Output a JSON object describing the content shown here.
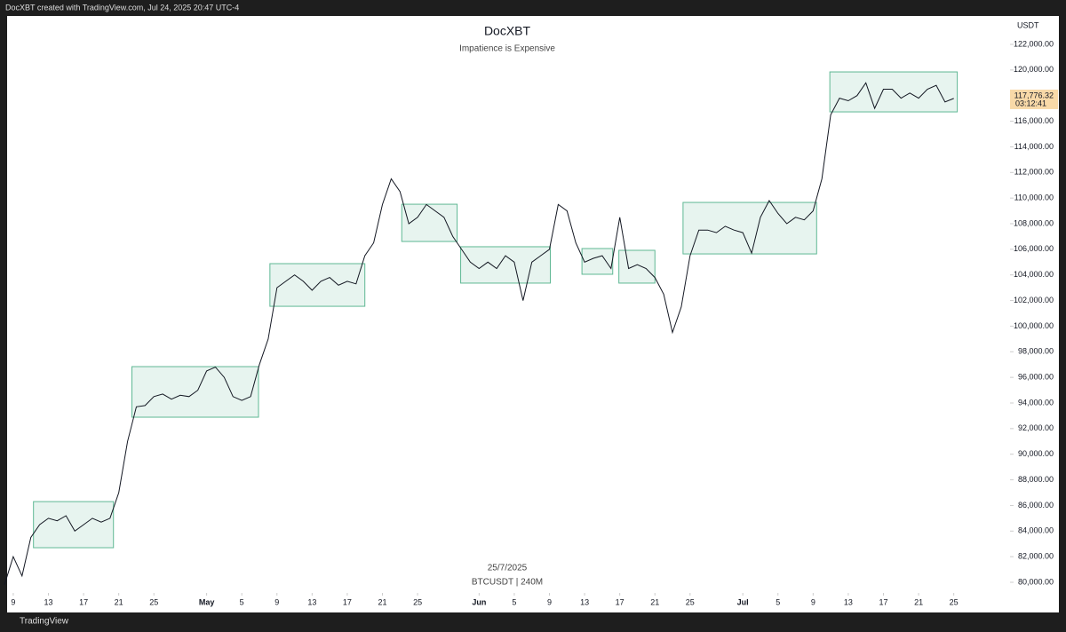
{
  "header": "DocXBT created with TradingView.com, Jul 24, 2025 20:47 UTC-4",
  "footer": "TradingView",
  "chart_data": {
    "type": "line",
    "title": "DocXBT",
    "subtitle": "Impatience is Expensive",
    "y_axis_label": "USDT",
    "watermark_date": "25/7/2025",
    "watermark_symbol": "BTCUSDT | 240M",
    "last_price_label": "117,776.32",
    "countdown": "03:12:41",
    "series": [
      {
        "name": "BTCUSDT",
        "color": "#131722",
        "x": [
          7,
          8,
          9,
          10,
          11,
          12,
          13,
          14,
          15,
          16,
          17,
          18,
          19,
          20,
          21,
          22,
          23,
          24,
          25,
          26,
          27,
          28,
          29,
          30,
          31,
          32,
          33,
          34,
          35,
          36,
          37,
          38,
          39,
          40,
          41,
          42,
          43,
          44,
          45,
          46,
          47,
          48,
          49,
          50,
          51,
          52,
          53,
          54,
          55,
          56,
          57,
          58,
          59,
          60,
          61,
          62,
          63,
          64,
          65,
          66,
          67,
          68,
          69,
          70,
          71,
          72,
          73,
          74,
          75,
          76,
          77,
          78,
          79,
          80,
          81,
          82,
          83,
          84,
          85,
          86,
          87,
          88,
          89,
          90,
          91,
          92,
          93,
          94,
          95,
          96,
          97,
          98,
          99,
          100,
          101,
          102,
          103,
          104,
          105,
          106,
          107,
          108,
          109,
          110,
          111,
          112,
          113,
          114,
          115
        ],
        "values": [
          79800,
          82000,
          80500,
          83500,
          84500,
          85000,
          84800,
          85200,
          84000,
          84500,
          85000,
          84700,
          85000,
          87000,
          91000,
          93700,
          93800,
          94500,
          94700,
          94300,
          94600,
          94500,
          95000,
          96500,
          96800,
          96000,
          94500,
          94200,
          94500,
          97000,
          99000,
          103000,
          103500,
          104000,
          103500,
          102800,
          103500,
          103800,
          103200,
          103500,
          103300,
          105500,
          106500,
          109500,
          111500,
          110500,
          108000,
          108500,
          109500,
          109000,
          108500,
          107000,
          106000,
          105000,
          104500,
          105000,
          104500,
          105500,
          105000,
          102000,
          105000,
          105500,
          106000,
          109500,
          109000,
          106500,
          105000,
          105300,
          105500,
          104500,
          108500,
          104500,
          104800,
          104500,
          103800,
          102500,
          99500,
          101500,
          105500,
          107500,
          107500,
          107300,
          107800,
          107500,
          107300,
          105700,
          108500,
          109800,
          108800,
          108000,
          108500,
          108300,
          109000,
          111500,
          116500,
          117800,
          117600,
          118000,
          119000,
          117000,
          118500,
          118500,
          117800,
          118200,
          117800,
          118500,
          118800,
          117500,
          117776.32
        ]
      }
    ],
    "box_color": "#5fb894",
    "boxes": [
      {
        "x": [
          10.3,
          19.4
        ],
        "y": [
          82700,
          86300
        ]
      },
      {
        "x": [
          21.5,
          35.9
        ],
        "y": [
          92890,
          96840
        ]
      },
      {
        "x": [
          37.2,
          48.0
        ],
        "y": [
          101550,
          104880
        ]
      },
      {
        "x": [
          52.2,
          58.5
        ],
        "y": [
          106610,
          109520
        ]
      },
      {
        "x": [
          58.9,
          69.1
        ],
        "y": [
          103360,
          106200
        ]
      },
      {
        "x": [
          72.7,
          76.2
        ],
        "y": [
          104050,
          106060
        ]
      },
      {
        "x": [
          76.9,
          81.0
        ],
        "y": [
          103360,
          105920
        ]
      },
      {
        "x": [
          84.2,
          99.4
        ],
        "y": [
          105640,
          109660
        ]
      },
      {
        "x": [
          100.9,
          115.4
        ],
        "y": [
          116730,
          119850
        ]
      }
    ],
    "xlim": [
      7.3,
      121.2
    ],
    "ylim": [
      79168,
      124218
    ],
    "xticks": [
      {
        "value": 8,
        "label": "9"
      },
      {
        "value": 12,
        "label": "13"
      },
      {
        "value": 16,
        "label": "17"
      },
      {
        "value": 20,
        "label": "21"
      },
      {
        "value": 24,
        "label": "25"
      },
      {
        "value": 30,
        "label": "May"
      },
      {
        "value": 34,
        "label": "5"
      },
      {
        "value": 38,
        "label": "9"
      },
      {
        "value": 42,
        "label": "13"
      },
      {
        "value": 46,
        "label": "17"
      },
      {
        "value": 50,
        "label": "21"
      },
      {
        "value": 54,
        "label": "25"
      },
      {
        "value": 61,
        "label": "Jun"
      },
      {
        "value": 65,
        "label": "5"
      },
      {
        "value": 69,
        "label": "9"
      },
      {
        "value": 73,
        "label": "13"
      },
      {
        "value": 77,
        "label": "17"
      },
      {
        "value": 81,
        "label": "21"
      },
      {
        "value": 85,
        "label": "25"
      },
      {
        "value": 91,
        "label": "Jul"
      },
      {
        "value": 95,
        "label": "5"
      },
      {
        "value": 99,
        "label": "9"
      },
      {
        "value": 103,
        "label": "13"
      },
      {
        "value": 107,
        "label": "17"
      },
      {
        "value": 111,
        "label": "21"
      },
      {
        "value": 115,
        "label": "25"
      }
    ],
    "yticks": [
      {
        "value": 80000,
        "label": "80,000.00"
      },
      {
        "value": 82000,
        "label": "82,000.00"
      },
      {
        "value": 84000,
        "label": "84,000.00"
      },
      {
        "value": 86000,
        "label": "86,000.00"
      },
      {
        "value": 88000,
        "label": "88,000.00"
      },
      {
        "value": 90000,
        "label": "90,000.00"
      },
      {
        "value": 92000,
        "label": "92,000.00"
      },
      {
        "value": 94000,
        "label": "94,000.00"
      },
      {
        "value": 96000,
        "label": "96,000.00"
      },
      {
        "value": 98000,
        "label": "98,000.00"
      },
      {
        "value": 100000,
        "label": "100,000.00"
      },
      {
        "value": 102000,
        "label": "102,000.00"
      },
      {
        "value": 104000,
        "label": "104,000.00"
      },
      {
        "value": 106000,
        "label": "106,000.00"
      },
      {
        "value": 108000,
        "label": "108,000.00"
      },
      {
        "value": 110000,
        "label": "110,000.00"
      },
      {
        "value": 112000,
        "label": "112,000.00"
      },
      {
        "value": 114000,
        "label": "114,000.00"
      },
      {
        "value": 116000,
        "label": "116,000.00"
      },
      {
        "value": 118000,
        "label": "118,000.00"
      },
      {
        "value": 120000,
        "label": "120,000.00"
      },
      {
        "value": 122000,
        "label": "122,000.00"
      }
    ],
    "grid": false
  }
}
